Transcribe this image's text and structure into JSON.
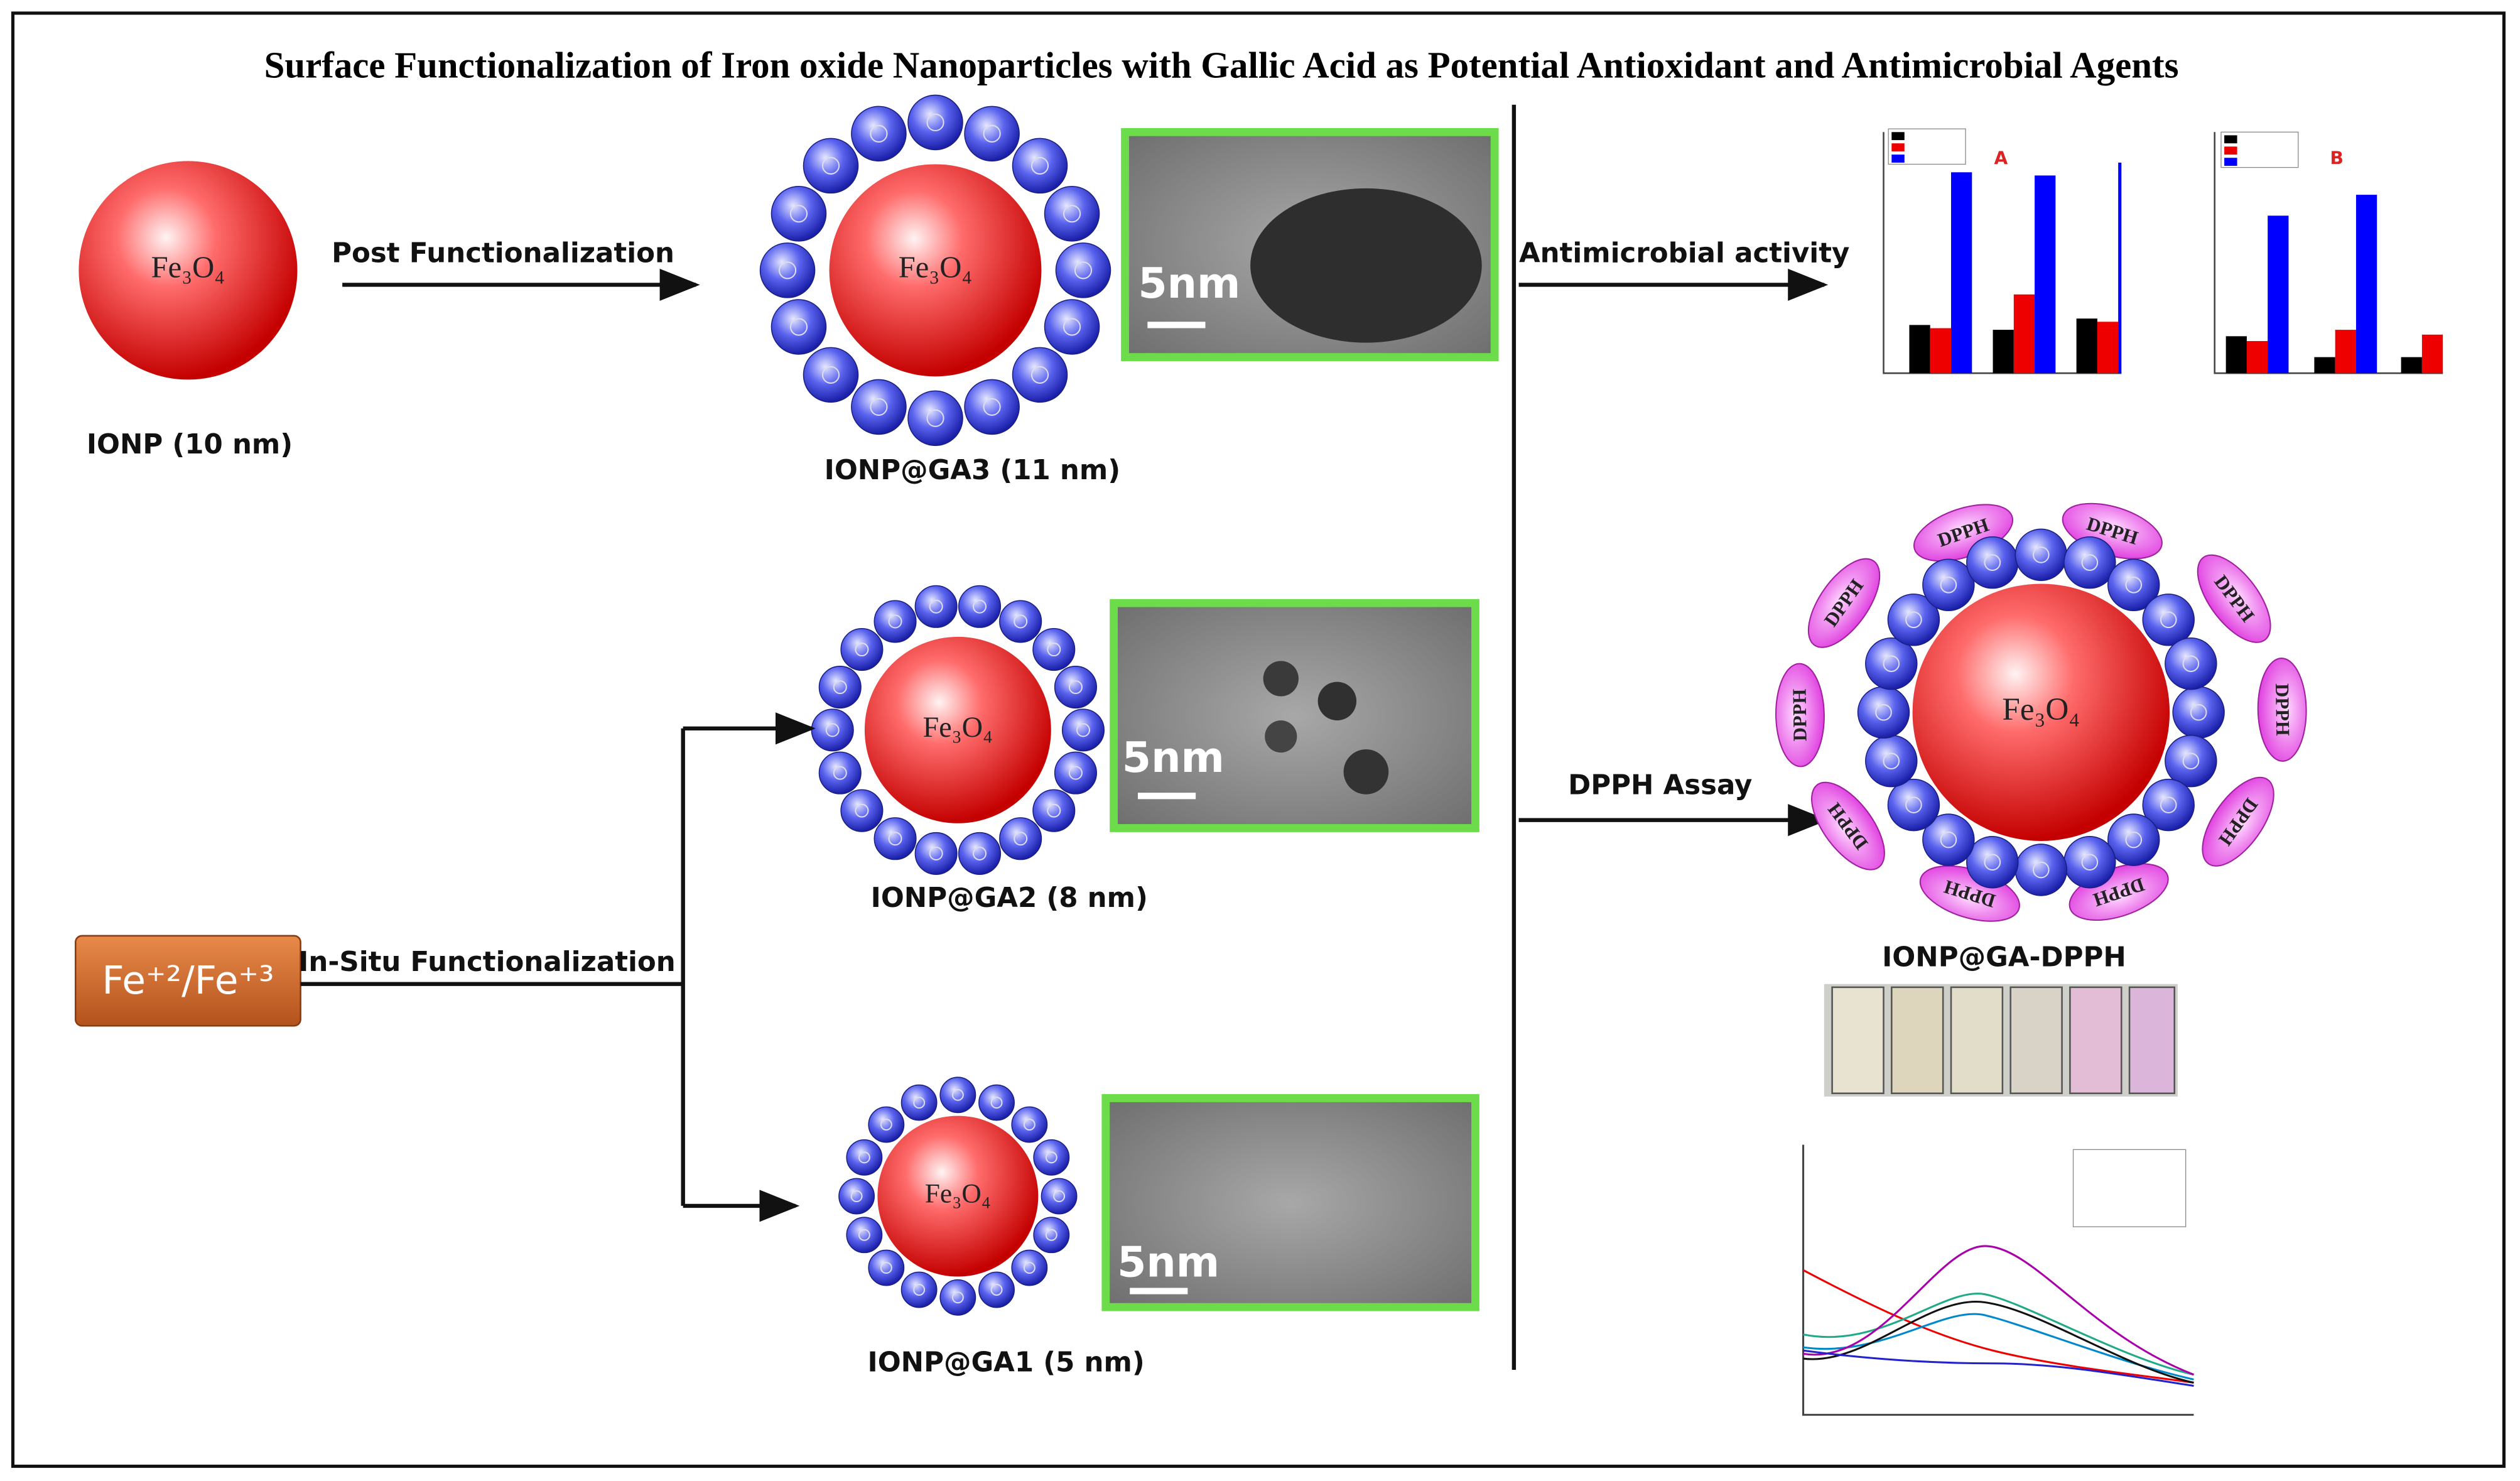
{
  "title": "Surface Functionalization of Iron oxide Nanoparticles with Gallic Acid as Potential Antioxidant and Antimicrobial Agents",
  "core_label": "Fe₃O₄",
  "scale_label": "5nm",
  "dpph_label": "DPPH",
  "precursor": "Fe⁺²/Fe⁺³",
  "steps": {
    "post": "Post Functionalization",
    "insitu": "In-Situ Functionalization",
    "antimicrobial": "Antimicrobial activity",
    "dpph": "DPPH Assay"
  },
  "particles": {
    "ionp": "IONP (10 nm)",
    "ga3": "IONP@GA3 (11 nm)",
    "ga2": "IONP@GA2 (8 nm)",
    "ga1": "IONP@GA1 (5 nm)",
    "complex": "IONP@GA-DPPH"
  },
  "panels": {
    "a": "A",
    "b": "B"
  }
}
